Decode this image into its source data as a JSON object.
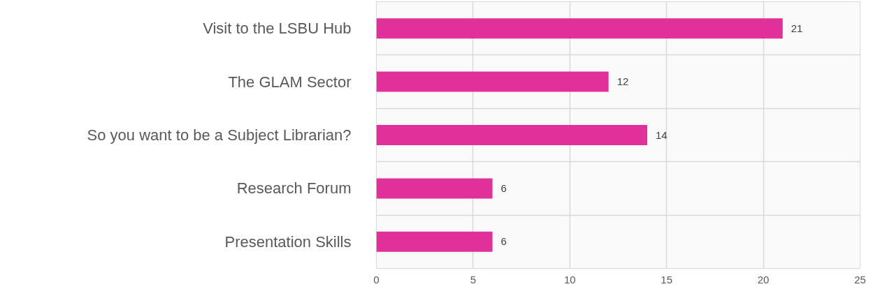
{
  "chart_data": {
    "type": "bar",
    "orientation": "horizontal",
    "categories": [
      "Visit to the LSBU Hub",
      "The GLAM Sector",
      "So you want to be a Subject Librarian?",
      "Research Forum",
      "Presentation Skills"
    ],
    "values": [
      21,
      12,
      14,
      6,
      6
    ],
    "color": "#e2309a",
    "xlim": [
      0,
      25
    ],
    "xticks": [
      0,
      5,
      10,
      15,
      20,
      25
    ],
    "grid": true,
    "data_labels": true
  }
}
